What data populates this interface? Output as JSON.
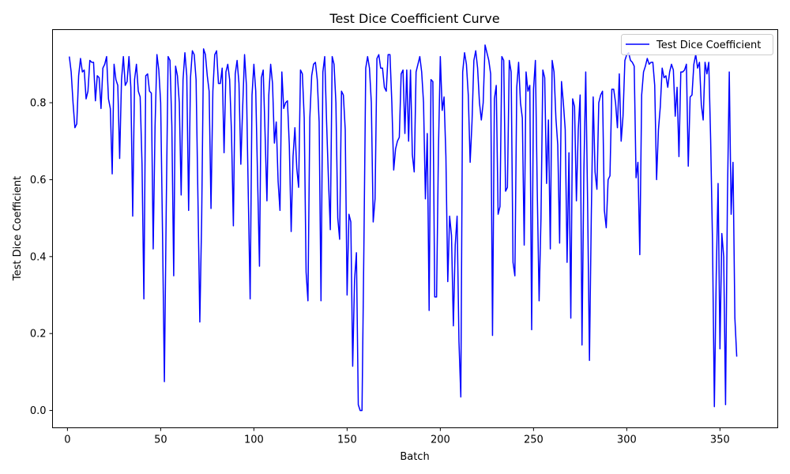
{
  "chart_data": {
    "type": "line",
    "title": "Test Dice Coefficient Curve",
    "xlabel": "Batch",
    "ylabel": "Test Dice Coefficient",
    "xlim": [
      -8,
      381
    ],
    "ylim": [
      -0.045,
      0.99
    ],
    "xticks": [
      0,
      50,
      100,
      150,
      200,
      250,
      300,
      350
    ],
    "yticks": [
      0.0,
      0.2,
      0.4,
      0.6,
      0.8
    ],
    "ytick_labels": [
      "0.0",
      "0.2",
      "0.4",
      "0.6",
      "0.8"
    ],
    "grid": false,
    "legend_position": "top-right",
    "series": [
      {
        "name": "Test Dice Coefficient",
        "color": "#0000ff",
        "x_start": 1,
        "x_step": 1,
        "values": [
          0.92,
          0.88,
          0.8,
          0.735,
          0.745,
          0.87,
          0.915,
          0.88,
          0.885,
          0.81,
          0.83,
          0.91,
          0.905,
          0.905,
          0.805,
          0.87,
          0.865,
          0.785,
          0.89,
          0.9,
          0.92,
          0.81,
          0.785,
          0.615,
          0.9,
          0.86,
          0.845,
          0.655,
          0.86,
          0.92,
          0.845,
          0.855,
          0.92,
          0.84,
          0.505,
          0.86,
          0.9,
          0.83,
          0.815,
          0.64,
          0.29,
          0.87,
          0.875,
          0.83,
          0.825,
          0.42,
          0.74,
          0.925,
          0.885,
          0.8,
          0.46,
          0.075,
          0.53,
          0.92,
          0.91,
          0.74,
          0.35,
          0.895,
          0.87,
          0.8,
          0.56,
          0.86,
          0.93,
          0.87,
          0.52,
          0.865,
          0.935,
          0.925,
          0.86,
          0.55,
          0.23,
          0.5,
          0.94,
          0.925,
          0.87,
          0.83,
          0.525,
          0.83,
          0.925,
          0.935,
          0.85,
          0.85,
          0.89,
          0.67,
          0.88,
          0.9,
          0.86,
          0.72,
          0.48,
          0.875,
          0.91,
          0.85,
          0.64,
          0.79,
          0.925,
          0.845,
          0.56,
          0.29,
          0.82,
          0.9,
          0.83,
          0.6,
          0.375,
          0.865,
          0.885,
          0.72,
          0.545,
          0.82,
          0.9,
          0.85,
          0.695,
          0.75,
          0.595,
          0.52,
          0.88,
          0.785,
          0.8,
          0.805,
          0.69,
          0.465,
          0.66,
          0.735,
          0.63,
          0.58,
          0.885,
          0.875,
          0.76,
          0.36,
          0.285,
          0.76,
          0.87,
          0.9,
          0.905,
          0.86,
          0.75,
          0.285,
          0.88,
          0.92,
          0.75,
          0.6,
          0.47,
          0.92,
          0.9,
          0.8,
          0.5,
          0.445,
          0.83,
          0.82,
          0.73,
          0.3,
          0.51,
          0.49,
          0.115,
          0.34,
          0.41,
          0.015,
          0.0,
          0.0,
          0.42,
          0.89,
          0.92,
          0.89,
          0.8,
          0.49,
          0.55,
          0.915,
          0.925,
          0.89,
          0.89,
          0.84,
          0.83,
          0.925,
          0.925,
          0.8,
          0.625,
          0.68,
          0.7,
          0.71,
          0.875,
          0.885,
          0.72,
          0.885,
          0.7,
          0.885,
          0.665,
          0.62,
          0.88,
          0.9,
          0.92,
          0.88,
          0.8,
          0.55,
          0.72,
          0.26,
          0.86,
          0.855,
          0.295,
          0.295,
          0.68,
          0.92,
          0.78,
          0.815,
          0.66,
          0.335,
          0.505,
          0.455,
          0.22,
          0.43,
          0.505,
          0.18,
          0.035,
          0.88,
          0.93,
          0.9,
          0.82,
          0.645,
          0.75,
          0.91,
          0.935,
          0.89,
          0.8,
          0.755,
          0.8,
          0.95,
          0.93,
          0.91,
          0.875,
          0.195,
          0.81,
          0.845,
          0.51,
          0.53,
          0.92,
          0.91,
          0.57,
          0.58,
          0.91,
          0.88,
          0.385,
          0.35,
          0.84,
          0.905,
          0.8,
          0.76,
          0.43,
          0.88,
          0.83,
          0.845,
          0.21,
          0.835,
          0.91,
          0.57,
          0.285,
          0.5,
          0.885,
          0.865,
          0.59,
          0.755,
          0.42,
          0.91,
          0.88,
          0.76,
          0.69,
          0.435,
          0.855,
          0.8,
          0.73,
          0.385,
          0.67,
          0.24,
          0.81,
          0.79,
          0.545,
          0.73,
          0.82,
          0.17,
          0.62,
          0.88,
          0.545,
          0.13,
          0.51,
          0.815,
          0.62,
          0.575,
          0.8,
          0.82,
          0.83,
          0.52,
          0.475,
          0.6,
          0.61,
          0.835,
          0.835,
          0.8,
          0.735,
          0.875,
          0.7,
          0.765,
          0.91,
          0.925,
          0.93,
          0.91,
          0.905,
          0.895,
          0.605,
          0.645,
          0.405,
          0.82,
          0.88,
          0.895,
          0.915,
          0.9,
          0.905,
          0.905,
          0.845,
          0.6,
          0.73,
          0.79,
          0.89,
          0.865,
          0.87,
          0.84,
          0.88,
          0.9,
          0.885,
          0.765,
          0.84,
          0.66,
          0.88,
          0.88,
          0.885,
          0.9,
          0.635,
          0.815,
          0.82,
          0.9,
          0.925,
          0.89,
          0.905,
          0.795,
          0.755,
          0.905,
          0.875,
          0.905,
          0.705,
          0.44,
          0.01,
          0.35,
          0.59,
          0.16,
          0.46,
          0.4,
          0.015,
          0.55,
          0.88,
          0.51,
          0.645,
          0.24,
          0.14
        ]
      }
    ]
  }
}
